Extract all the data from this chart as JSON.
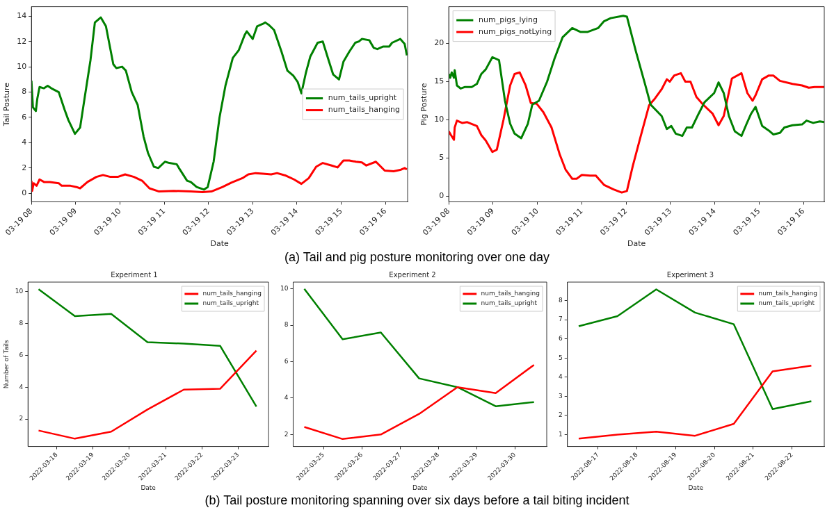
{
  "chart_data": [
    {
      "type": "line",
      "xlabel": "Date",
      "ylabel": "Tail Posture",
      "xlim": [
        "--03-19T08:00",
        "--03-19T16:30"
      ],
      "ylim": [
        -0.67,
        14.75
      ],
      "yticks": [
        0,
        2,
        4,
        6,
        8,
        10,
        12,
        14
      ],
      "xticks": [
        {
          "value": "--03-19T08:00",
          "label": "03-19 08"
        },
        {
          "value": "--03-19T09:00",
          "label": "03-19 09"
        },
        {
          "value": "--03-19T10:00",
          "label": "03-19 10"
        },
        {
          "value": "--03-19T11:00",
          "label": "03-19 11"
        },
        {
          "value": "--03-19T12:00",
          "label": "03-19 12"
        },
        {
          "value": "--03-19T13:00",
          "label": "03-19 13"
        },
        {
          "value": "--03-19T14:00",
          "label": "03-19 14"
        },
        {
          "value": "--03-19T15:00",
          "label": "03-19 15"
        },
        {
          "value": "--03-19T16:00",
          "label": "03-19 16"
        }
      ],
      "grid": false,
      "legend": "center right",
      "annotations": [
        "(a) Tail and pig posture monitoring over one day"
      ],
      "series": [
        {
          "name": "num_tails_upright",
          "color": "#008000",
          "x": [
            "--03-19T08:00",
            "--03-19T08:02",
            "--03-19T08:06",
            "--03-19T08:08",
            "--03-19T08:11",
            "--03-19T08:17",
            "--03-19T08:22",
            "--03-19T08:27",
            "--03-19T08:37",
            "--03-19T08:45",
            "--03-19T08:50",
            "--03-19T08:59",
            "--03-19T09:06",
            "--03-19T09:12",
            "--03-19T09:20",
            "--03-19T09:26",
            "--03-19T09:34",
            "--03-19T09:41",
            "--03-19T09:51",
            "--03-19T09:55",
            "--03-19T10:03",
            "--03-19T10:08",
            "--03-19T10:16",
            "--03-19T10:24",
            "--03-19T10:32",
            "--03-19T10:38",
            "--03-19T10:46",
            "--03-19T10:52",
            "--03-19T11:01",
            "--03-19T11:07",
            "--03-19T11:17",
            "--03-19T11:20",
            "--03-19T11:31",
            "--03-19T11:36",
            "--03-19T11:44",
            "--03-19T11:54",
            "--03-19T11:59",
            "--03-19T12:07",
            "--03-19T12:15",
            "--03-19T12:23",
            "--03-19T12:33",
            "--03-19T12:41",
            "--03-19T12:49",
            "--03-19T12:52",
            "--03-19T12:56",
            "--03-19T13:00",
            "--03-19T13:06",
            "--03-19T13:14",
            "--03-19T13:17",
            "--03-19T13:22",
            "--03-19T13:29",
            "--03-19T13:39",
            "--03-19T13:47",
            "--03-19T13:55",
            "--03-19T14:01",
            "--03-19T14:06",
            "--03-19T14:12",
            "--03-19T14:18",
            "--03-19T14:28",
            "--03-19T14:35",
            "--03-19T14:43",
            "--03-19T14:49",
            "--03-19T14:57",
            "--03-19T15:03",
            "--03-19T15:11",
            "--03-19T15:19",
            "--03-19T15:24",
            "--03-19T15:28",
            "--03-19T15:38",
            "--03-19T15:44",
            "--03-19T15:49",
            "--03-19T15:57",
            "--03-19T16:05",
            "--03-19T16:09",
            "--03-19T16:20",
            "--03-19T16:26",
            "--03-19T16:29"
          ],
          "values": [
            8.9,
            6.8,
            6.5,
            7.5,
            8.4,
            8.3,
            8.5,
            8.3,
            8.0,
            6.6,
            5.8,
            4.7,
            5.2,
            7.5,
            10.5,
            13.5,
            13.9,
            13.2,
            10.2,
            9.9,
            10.0,
            9.7,
            8.0,
            7.0,
            4.5,
            3.2,
            2.1,
            2.0,
            2.5,
            2.4,
            2.3,
            2.0,
            1.0,
            0.9,
            0.5,
            0.3,
            0.5,
            2.5,
            6.0,
            8.5,
            10.7,
            11.3,
            12.5,
            12.8,
            12.5,
            12.2,
            13.2,
            13.4,
            13.5,
            13.3,
            12.9,
            11.2,
            9.7,
            9.3,
            8.8,
            7.9,
            9.5,
            10.8,
            11.9,
            12.0,
            10.5,
            9.4,
            9.0,
            10.4,
            11.2,
            11.9,
            12.0,
            12.2,
            12.1,
            11.5,
            11.4,
            11.6,
            11.6,
            11.9,
            12.2,
            11.8,
            10.9
          ]
        },
        {
          "name": "num_tails_hanging",
          "color": "#ff0000",
          "x": [
            "--03-19T08:00",
            "--03-19T08:01",
            "--03-19T08:03",
            "--03-19T08:07",
            "--03-19T08:11",
            "--03-19T08:17",
            "--03-19T08:25",
            "--03-19T08:37",
            "--03-19T08:41",
            "--03-19T08:53",
            "--03-19T09:01",
            "--03-19T09:06",
            "--03-19T09:16",
            "--03-19T09:28",
            "--03-19T09:37",
            "--03-19T09:47",
            "--03-19T09:57",
            "--03-19T10:07",
            "--03-19T10:19",
            "--03-19T10:30",
            "--03-19T10:40",
            "--03-19T10:53",
            "--03-19T11:13",
            "--03-19T11:36",
            "--03-19T11:52",
            "--03-19T12:04",
            "--03-19T12:19",
            "--03-19T12:31",
            "--03-19T12:46",
            "--03-19T12:54",
            "--03-19T13:04",
            "--03-19T13:14",
            "--03-19T13:25",
            "--03-19T13:33",
            "--03-19T13:45",
            "--03-19T13:56",
            "--03-19T14:06",
            "--03-19T14:16",
            "--03-19T14:26",
            "--03-19T14:35",
            "--03-19T14:47",
            "--03-19T14:55",
            "--03-19T15:03",
            "--03-19T15:11",
            "--03-19T15:20",
            "--03-19T15:28",
            "--03-19T15:34",
            "--03-19T15:47",
            "--03-19T15:59",
            "--03-19T16:11",
            "--03-19T16:20",
            "--03-19T16:26",
            "--03-19T16:29"
          ],
          "values": [
            1.0,
            0.2,
            0.8,
            0.6,
            1.1,
            0.9,
            0.9,
            0.8,
            0.6,
            0.6,
            0.5,
            0.4,
            0.9,
            1.3,
            1.45,
            1.3,
            1.3,
            1.5,
            1.3,
            1.0,
            0.4,
            0.15,
            0.2,
            0.15,
            0.1,
            0.15,
            0.5,
            0.85,
            1.2,
            1.5,
            1.6,
            1.55,
            1.5,
            1.6,
            1.4,
            1.1,
            0.75,
            1.2,
            2.1,
            2.4,
            2.2,
            2.05,
            2.6,
            2.6,
            2.5,
            2.45,
            2.2,
            2.5,
            1.8,
            1.75,
            1.85,
            2.0,
            1.9
          ]
        }
      ]
    },
    {
      "type": "line",
      "xlabel": "Date",
      "ylabel": "Pig Posture",
      "xlim": [
        "--03-19T08:00",
        "--03-19T16:28"
      ],
      "ylim": [
        -0.72,
        24.8
      ],
      "yticks": [
        0,
        5,
        10,
        15,
        20
      ],
      "xticks": [
        {
          "value": "--03-19T08:00",
          "label": "03-19 08"
        },
        {
          "value": "--03-19T09:00",
          "label": "03-19 09"
        },
        {
          "value": "--03-19T10:00",
          "label": "03-19 10"
        },
        {
          "value": "--03-19T11:00",
          "label": "03-19 11"
        },
        {
          "value": "--03-19T12:00",
          "label": "03-19 12"
        },
        {
          "value": "--03-19T13:00",
          "label": "03-19 13"
        },
        {
          "value": "--03-19T14:00",
          "label": "03-19 14"
        },
        {
          "value": "--03-19T15:00",
          "label": "03-19 15"
        },
        {
          "value": "--03-19T16:00",
          "label": "03-19 16"
        }
      ],
      "grid": false,
      "legend": "top left",
      "series": [
        {
          "name": "num_pigs_lying",
          "color": "#008000",
          "x": [
            "--03-19T08:00",
            "--03-19T08:02",
            "--03-19T08:04",
            "--03-19T08:07",
            "--03-19T08:08",
            "--03-19T08:11",
            "--03-19T08:16",
            "--03-19T08:22",
            "--03-19T08:31",
            "--03-19T08:38",
            "--03-19T08:44",
            "--03-19T08:50",
            "--03-19T08:59",
            "--03-19T09:08",
            "--03-19T09:16",
            "--03-19T09:23",
            "--03-19T09:29",
            "--03-19T09:38",
            "--03-19T09:47",
            "--03-19T09:53",
            "--03-19T10:02",
            "--03-19T10:13",
            "--03-19T10:23",
            "--03-19T10:34",
            "--03-19T10:47",
            "--03-19T10:58",
            "--03-19T11:08",
            "--03-19T11:22",
            "--03-19T11:30",
            "--03-19T11:39",
            "--03-19T11:56",
            "--03-19T12:01",
            "--03-19T12:13",
            "--03-19T12:26",
            "--03-19T12:33",
            "--03-19T12:48",
            "--03-19T12:55",
            "--03-19T13:01",
            "--03-19T13:07",
            "--03-19T13:16",
            "--03-19T13:22",
            "--03-19T13:29",
            "--03-19T13:38",
            "--03-19T13:46",
            "--03-19T13:59",
            "--03-19T14:05",
            "--03-19T14:12",
            "--03-19T14:19",
            "--03-19T14:27",
            "--03-19T14:36",
            "--03-19T14:43",
            "--03-19T14:49",
            "--03-19T14:55",
            "--03-19T15:04",
            "--03-19T15:13",
            "--03-19T15:19",
            "--03-19T15:28",
            "--03-19T15:34",
            "--03-19T15:45",
            "--03-19T15:58",
            "--03-19T16:04",
            "--03-19T16:13",
            "--03-19T16:22",
            "--03-19T16:28"
          ],
          "values": [
            16.0,
            15.5,
            16.2,
            15.5,
            16.5,
            14.5,
            14.1,
            14.3,
            14.3,
            14.7,
            16.0,
            16.6,
            18.2,
            17.8,
            12.5,
            9.5,
            8.2,
            7.6,
            9.5,
            12.0,
            12.5,
            15.0,
            18.0,
            20.8,
            22.0,
            21.5,
            21.5,
            22.0,
            22.9,
            23.3,
            23.6,
            23.5,
            19.0,
            14.5,
            12.0,
            10.5,
            8.8,
            9.2,
            8.2,
            7.9,
            9.0,
            9.0,
            10.8,
            12.3,
            13.5,
            14.9,
            13.5,
            10.5,
            8.5,
            7.9,
            9.5,
            10.8,
            11.7,
            9.2,
            8.6,
            8.1,
            8.3,
            9.0,
            9.3,
            9.4,
            9.9,
            9.6,
            9.8,
            9.7
          ]
        },
        {
          "name": "num_pigs_notLying",
          "color": "#ff0000",
          "x": [
            "--03-19T08:00",
            "--03-19T08:03",
            "--03-19T08:07",
            "--03-19T08:08",
            "--03-19T08:11",
            "--03-19T08:18",
            "--03-19T08:25",
            "--03-19T08:38",
            "--03-19T08:44",
            "--03-19T08:50",
            "--03-19T08:59",
            "--03-19T09:05",
            "--03-19T09:14",
            "--03-19T09:23",
            "--03-19T09:29",
            "--03-19T09:36",
            "--03-19T09:44",
            "--03-19T09:51",
            "--03-19T09:59",
            "--03-19T10:08",
            "--03-19T10:19",
            "--03-19T10:30",
            "--03-19T10:38",
            "--03-19T10:47",
            "--03-19T10:53",
            "--03-19T11:00",
            "--03-19T11:11",
            "--03-19T11:19",
            "--03-19T11:30",
            "--03-19T11:43",
            "--03-19T11:54",
            "--03-19T12:01",
            "--03-19T12:09",
            "--03-19T12:20",
            "--03-19T12:31",
            "--03-19T12:39",
            "--03-19T12:48",
            "--03-19T12:55",
            "--03-19T12:59",
            "--03-19T13:05",
            "--03-19T13:14",
            "--03-19T13:20",
            "--03-19T13:27",
            "--03-19T13:35",
            "--03-19T13:44",
            "--03-19T13:57",
            "--03-19T14:05",
            "--03-19T14:12",
            "--03-19T14:23",
            "--03-19T14:36",
            "--03-19T14:44",
            "--03-19T14:51",
            "--03-19T14:55",
            "--03-19T15:04",
            "--03-19T15:13",
            "--03-19T15:19",
            "--03-19T15:28",
            "--03-19T15:45",
            "--03-19T15:58",
            "--03-19T16:07",
            "--03-19T16:15",
            "--03-19T16:28"
          ],
          "values": [
            8.5,
            8.0,
            7.4,
            9.0,
            9.9,
            9.6,
            9.7,
            9.2,
            8.0,
            7.3,
            5.8,
            6.1,
            10.0,
            14.5,
            16.0,
            16.2,
            14.5,
            12.2,
            12.1,
            11.0,
            9.0,
            5.5,
            3.5,
            2.3,
            2.3,
            2.8,
            2.7,
            2.7,
            1.5,
            0.9,
            0.5,
            0.7,
            4.0,
            8.0,
            11.9,
            12.8,
            14.0,
            15.3,
            15.0,
            15.8,
            16.1,
            15.0,
            15.0,
            13.0,
            12.0,
            10.8,
            9.3,
            10.5,
            15.4,
            16.1,
            13.5,
            12.5,
            13.2,
            15.3,
            15.8,
            15.8,
            15.1,
            14.7,
            14.5,
            14.2,
            14.3,
            14.3
          ]
        }
      ]
    },
    {
      "type": "line",
      "title": "Experiment 1",
      "xlabel": "Date",
      "ylabel": "Number of Tails",
      "xlim": [
        "2022-03-17T05:00",
        "2022-03-23T20:00"
      ],
      "xticks": [
        "2022-03-18",
        "2022-03-19",
        "2022-03-20",
        "2022-03-21",
        "2022-03-22",
        "2022-03-23"
      ],
      "ylim": [
        0.28,
        10.6
      ],
      "yticks": [
        2,
        4,
        6,
        8,
        10
      ],
      "grid": false,
      "legend": "top right",
      "series": [
        {
          "name": "num_tails_hanging",
          "color": "#ff0000",
          "x": [
            "2022-03-17T12:00",
            "2022-03-18T12:00",
            "2022-03-19T12:00",
            "2022-03-20T12:00",
            "2022-03-21T12:00",
            "2022-03-22T12:00",
            "2022-03-23T12:00"
          ],
          "values": [
            1.28,
            0.77,
            1.21,
            2.6,
            3.85,
            3.9,
            6.3
          ]
        },
        {
          "name": "num_tails_upright",
          "color": "#008000",
          "x": [
            "2022-03-17T12:00",
            "2022-03-18T12:00",
            "2022-03-19T12:00",
            "2022-03-20T12:00",
            "2022-03-21T12:00",
            "2022-03-22T12:00",
            "2022-03-23T12:00"
          ],
          "values": [
            10.15,
            8.46,
            8.6,
            6.83,
            6.74,
            6.6,
            2.79
          ]
        }
      ]
    },
    {
      "type": "line",
      "title": "Experiment 2",
      "xlabel": "Date",
      "xlim": [
        "2022-03-24T05:00",
        "2022-03-30T20:00"
      ],
      "xticks": [
        "2022-03-25",
        "2022-03-26",
        "2022-03-27",
        "2022-03-28",
        "2022-03-29",
        "2022-03-30"
      ],
      "ylim": [
        1.34,
        10.37
      ],
      "yticks": [
        2,
        4,
        6,
        8,
        10
      ],
      "grid": false,
      "legend": "top right",
      "annotations": [
        "(b) Tail posture monitoring spanning over six days before a tail biting incident"
      ],
      "series": [
        {
          "name": "num_tails_hanging",
          "color": "#ff0000",
          "x": [
            "2022-03-24T12:00",
            "2022-03-25T12:00",
            "2022-03-26T12:00",
            "2022-03-27T12:00",
            "2022-03-28T12:00",
            "2022-03-29T12:00",
            "2022-03-30T12:00"
          ],
          "values": [
            2.41,
            1.75,
            2.0,
            3.13,
            4.6,
            4.27,
            5.82
          ]
        },
        {
          "name": "num_tails_upright",
          "color": "#008000",
          "x": [
            "2022-03-24T12:00",
            "2022-03-25T12:00",
            "2022-03-26T12:00",
            "2022-03-27T12:00",
            "2022-03-28T12:00",
            "2022-03-29T12:00",
            "2022-03-30T12:00"
          ],
          "values": [
            10.0,
            7.23,
            7.6,
            5.08,
            4.6,
            3.55,
            3.78
          ]
        }
      ]
    },
    {
      "type": "line",
      "title": "Experiment 3",
      "xlabel": "Date",
      "xlim": [
        "2022-08-16T05:00",
        "2022-08-22T20:00"
      ],
      "xticks": [
        "2022-08-17",
        "2022-08-18",
        "2022-08-19",
        "2022-08-20",
        "2022-08-21",
        "2022-08-22"
      ],
      "ylim": [
        0.38,
        8.96
      ],
      "yticks": [
        1,
        2,
        3,
        4,
        5,
        6,
        7,
        8
      ],
      "grid": false,
      "legend": "top right",
      "series": [
        {
          "name": "num_tails_hanging",
          "color": "#ff0000",
          "x": [
            "2022-08-16T12:00",
            "2022-08-17T12:00",
            "2022-08-18T12:00",
            "2022-08-19T12:00",
            "2022-08-20T12:00",
            "2022-08-21T12:00",
            "2022-08-22T12:00"
          ],
          "values": [
            0.79,
            1.0,
            1.15,
            0.94,
            1.56,
            4.3,
            4.6
          ]
        },
        {
          "name": "num_tails_upright",
          "color": "#008000",
          "x": [
            "2022-08-16T12:00",
            "2022-08-17T12:00",
            "2022-08-18T12:00",
            "2022-08-19T12:00",
            "2022-08-20T12:00",
            "2022-08-21T12:00",
            "2022-08-22T12:00"
          ],
          "values": [
            6.66,
            7.18,
            8.58,
            7.37,
            6.76,
            2.33,
            2.74
          ]
        }
      ]
    }
  ]
}
